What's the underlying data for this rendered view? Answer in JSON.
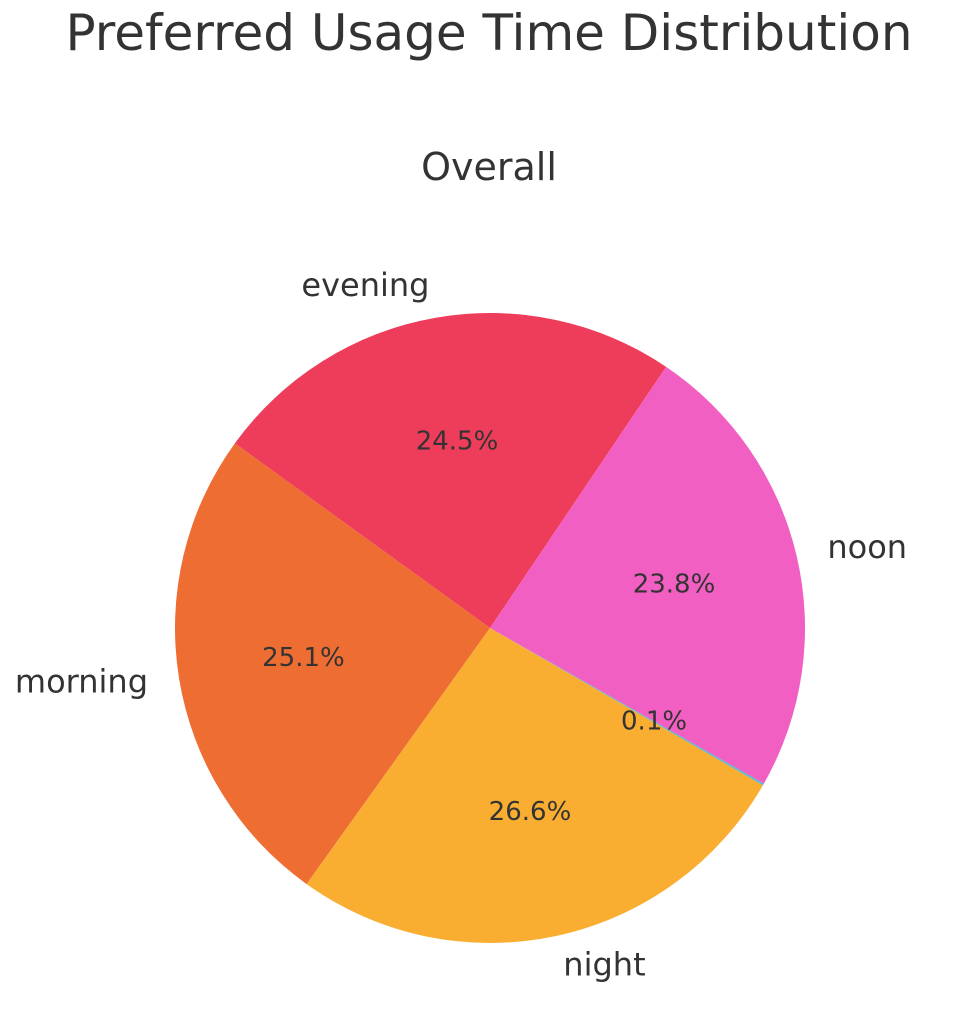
{
  "chart_data": {
    "type": "pie",
    "title": "Preferred Usage Time Distribution",
    "subtitle": "Overall",
    "slices": [
      {
        "label": "evening",
        "value": 24.5,
        "pct_label": "24.5%",
        "color": "#ee3d5a"
      },
      {
        "label": "morning",
        "value": 25.1,
        "pct_label": "25.1%",
        "color": "#ee6d33"
      },
      {
        "label": "night",
        "value": 26.6,
        "pct_label": "26.6%",
        "color": "#f9ae32"
      },
      {
        "label": "",
        "value": 0.1,
        "pct_label": "0.1%",
        "color": "#5bb8d6"
      },
      {
        "label": "noon",
        "value": 23.8,
        "pct_label": "23.8%",
        "color": "#f25fc2"
      }
    ],
    "start_angle_deg": 56,
    "direction": "counterclockwise",
    "legend": "none"
  }
}
